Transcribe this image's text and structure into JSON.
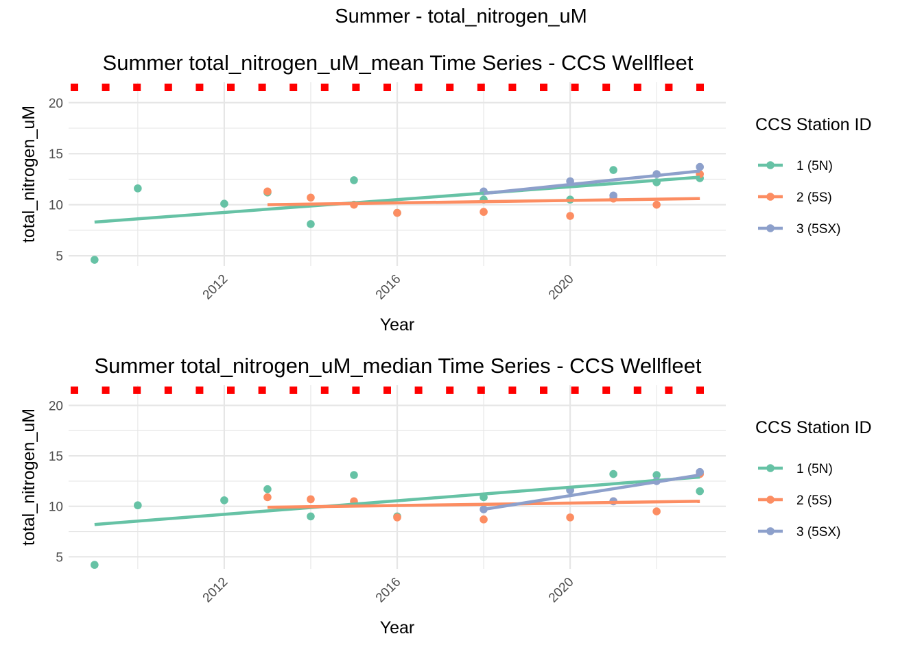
{
  "main_title": "Summer - total_nitrogen_uM",
  "colors": {
    "station_1": "#66c2a5",
    "station_2": "#fc8d62",
    "station_3": "#8da0cb",
    "threshold": "#ff0000",
    "grid": "#e6e6e6"
  },
  "chart_data": [
    {
      "type": "scatter",
      "title": "Summer total_nitrogen_uM_mean Time Series - CCS Wellfleet",
      "xlabel": "Year",
      "ylabel": "total_nitrogen_uM",
      "xlim": [
        2008.4,
        2023.6
      ],
      "ylim": [
        4.0,
        22.0
      ],
      "x_ticks": [
        2012,
        2016,
        2020
      ],
      "x_tick_labels": [
        "2012",
        "2016",
        "2020"
      ],
      "y_ticks": [
        5,
        10,
        15,
        20
      ],
      "y_tick_labels": [
        "5",
        "10",
        "15",
        "20"
      ],
      "threshold_line": {
        "y": 21.5,
        "style": "dotted"
      },
      "grid": true,
      "legend_title": "CCS Station ID",
      "legend_position": "right",
      "series": [
        {
          "name": "1 (5N)",
          "color": "#66c2a5",
          "x": [
            2009,
            2010,
            2012,
            2013,
            2014,
            2015,
            2016,
            2018,
            2020,
            2021,
            2022,
            2023
          ],
          "y": [
            4.6,
            11.6,
            10.1,
            11.2,
            8.1,
            12.4,
            9.2,
            10.5,
            10.5,
            13.4,
            12.2,
            12.6
          ],
          "trend": [
            [
              2009,
              8.3
            ],
            [
              2023,
              12.7
            ]
          ]
        },
        {
          "name": "2 (5S)",
          "color": "#fc8d62",
          "x": [
            2013,
            2014,
            2015,
            2016,
            2018,
            2020,
            2021,
            2022,
            2023
          ],
          "y": [
            11.3,
            10.7,
            10.0,
            9.2,
            9.3,
            8.9,
            10.6,
            10.0,
            13.0
          ],
          "trend": [
            [
              2013,
              10.0
            ],
            [
              2023,
              10.6
            ]
          ]
        },
        {
          "name": "3 (5SX)",
          "color": "#8da0cb",
          "x": [
            2018,
            2020,
            2021,
            2022,
            2023
          ],
          "y": [
            11.3,
            12.3,
            10.9,
            13.0,
            13.7
          ],
          "trend": [
            [
              2018,
              11.1
            ],
            [
              2023,
              13.3
            ]
          ]
        }
      ]
    },
    {
      "type": "scatter",
      "title": "Summer total_nitrogen_uM_median Time Series - CCS Wellfleet",
      "xlabel": "Year",
      "ylabel": "total_nitrogen_uM",
      "xlim": [
        2008.4,
        2023.6
      ],
      "ylim": [
        3.8,
        22.0
      ],
      "x_ticks": [
        2012,
        2016,
        2020
      ],
      "x_tick_labels": [
        "2012",
        "2016",
        "2020"
      ],
      "y_ticks": [
        5,
        10,
        15,
        20
      ],
      "y_tick_labels": [
        "5",
        "10",
        "15",
        "20"
      ],
      "threshold_line": {
        "y": 21.5,
        "style": "dotted"
      },
      "grid": true,
      "legend_title": "CCS Station ID",
      "legend_position": "right",
      "series": [
        {
          "name": "1 (5N)",
          "color": "#66c2a5",
          "x": [
            2009,
            2010,
            2012,
            2013,
            2014,
            2015,
            2016,
            2018,
            2020,
            2021,
            2022,
            2023
          ],
          "y": [
            4.2,
            10.1,
            10.6,
            11.7,
            9.0,
            13.1,
            9.0,
            10.9,
            11.6,
            13.2,
            13.1,
            11.5
          ],
          "trend": [
            [
              2009,
              8.2
            ],
            [
              2023,
              12.9
            ]
          ]
        },
        {
          "name": "2 (5S)",
          "color": "#fc8d62",
          "x": [
            2013,
            2014,
            2015,
            2016,
            2018,
            2020,
            2021,
            2022,
            2023
          ],
          "y": [
            10.9,
            10.7,
            10.5,
            8.9,
            8.7,
            8.9,
            10.5,
            9.5,
            13.2
          ],
          "trend": [
            [
              2013,
              9.9
            ],
            [
              2023,
              10.5
            ]
          ]
        },
        {
          "name": "3 (5SX)",
          "color": "#8da0cb",
          "x": [
            2018,
            2020,
            2021,
            2022,
            2023
          ],
          "y": [
            9.7,
            11.6,
            10.5,
            12.5,
            13.4
          ],
          "trend": [
            [
              2018,
              9.7
            ],
            [
              2023,
              13.1
            ]
          ]
        }
      ]
    }
  ]
}
